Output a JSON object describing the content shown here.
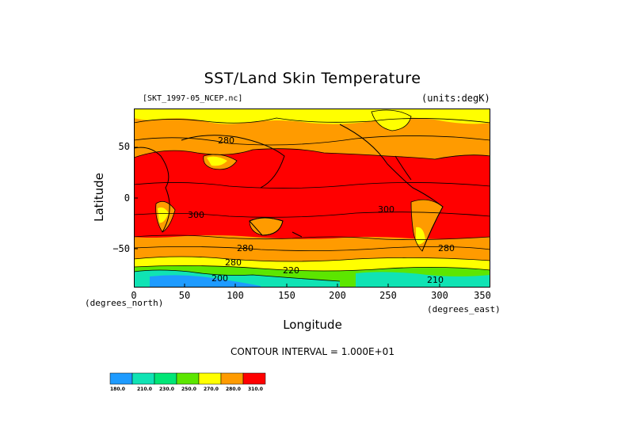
{
  "title": "SST/Land Skin Temperature",
  "file_label": "[SKT_1997-05_NCEP.nc]",
  "units_label": "(units:degK)",
  "y_axis": {
    "label": "Latitude",
    "ticks": [
      "50",
      "0",
      "−50"
    ]
  },
  "x_axis": {
    "label": "Longitude",
    "ticks": [
      "0",
      "50",
      "100",
      "150",
      "200",
      "250",
      "300",
      "350"
    ],
    "units_left": "(degrees_north)",
    "units_right": "(degrees_east)"
  },
  "contour_interval": "CONTOUR INTERVAL = 1.000E+01",
  "contour_labels": [
    "280",
    "300",
    "300",
    "280",
    "280",
    "280",
    "220",
    "200",
    "210"
  ],
  "colorbar": {
    "levels": [
      "180.0",
      "210.0",
      "230.0",
      "250.0",
      "270.0",
      "280.0",
      "310.0"
    ],
    "colors": [
      "#1e9bff",
      "#10e3b4",
      "#00e676",
      "#5ce600",
      "#ffff00",
      "#ff9b00",
      "#ff0000"
    ]
  },
  "colors": {
    "warm": "#ff0000",
    "mid": "#ff9b00",
    "cool": "#ffff00",
    "cold": "#00e676",
    "colder": "#10e3b4",
    "coldest": "#1e9bff"
  }
}
